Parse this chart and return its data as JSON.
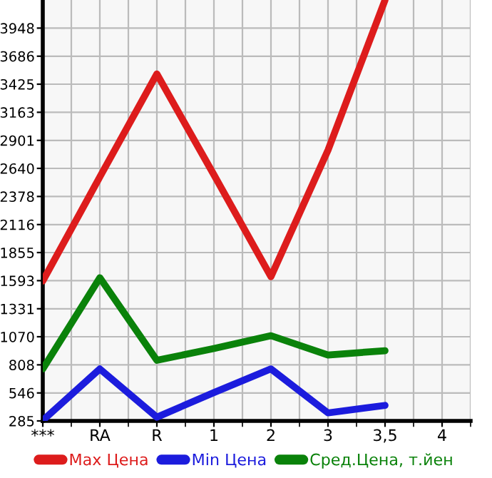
{
  "chart_data": {
    "type": "line",
    "categories": [
      "***",
      "RA",
      "R",
      "1",
      "2",
      "3",
      "3,5",
      "4"
    ],
    "series": [
      {
        "name": "Max Цена",
        "color": "#dd1c1c",
        "values": [
          1590,
          2560,
          3520,
          2580,
          1630,
          2810,
          4210,
          null
        ]
      },
      {
        "name": "Min Цена",
        "color": "#1c1cdd",
        "values": [
          290,
          770,
          320,
          550,
          770,
          360,
          430,
          null
        ]
      },
      {
        "name": "Сред.Цена, т.йен",
        "color": "#0a820a",
        "values": [
          770,
          1620,
          850,
          960,
          1080,
          900,
          940,
          null
        ]
      }
    ],
    "ylim": [
      285,
      4210
    ],
    "yticks": [
      285,
      546,
      808,
      1070,
      1331,
      1593,
      1855,
      2116,
      2378,
      2640,
      2901,
      3163,
      3425,
      3686,
      3948
    ],
    "grid": true,
    "legend": "bottom",
    "marker": "none",
    "line_style": "solid"
  }
}
